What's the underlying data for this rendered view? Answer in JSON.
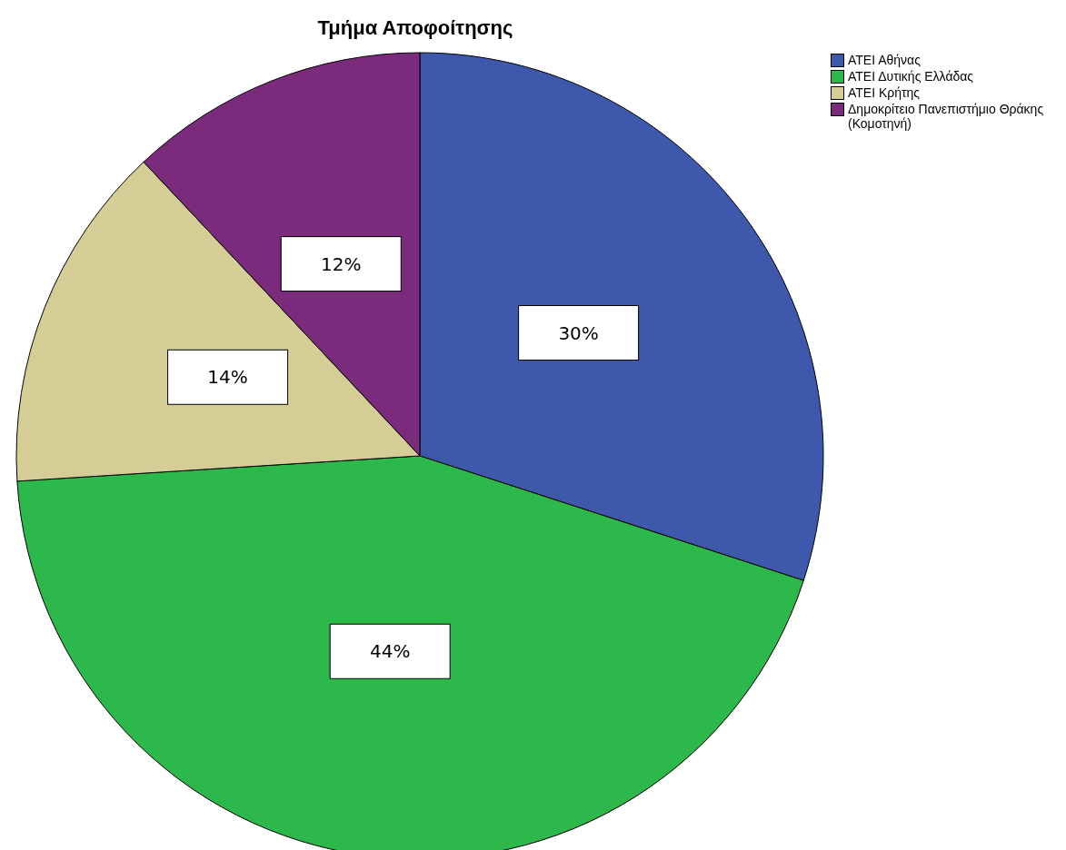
{
  "chart_data": {
    "type": "pie",
    "title": "Τμήμα Αποφοίτησης",
    "categories": [
      "ΑΤΕΙ Αθήνας",
      "ΑΤΕΙ Δυτικής Ελλάδας",
      "ΑΤΕΙ Κρήτης",
      "Δημοκρίτειο Πανεπιστήμιο Θράκης (Κομοτηνή)"
    ],
    "values": [
      30,
      44,
      14,
      12
    ],
    "value_labels": [
      "30%",
      "44%",
      "14%",
      "12%"
    ],
    "colors": [
      "#3e58ac",
      "#2db84b",
      "#d4ce96",
      "#7b2b7c"
    ],
    "legend": "top right"
  }
}
